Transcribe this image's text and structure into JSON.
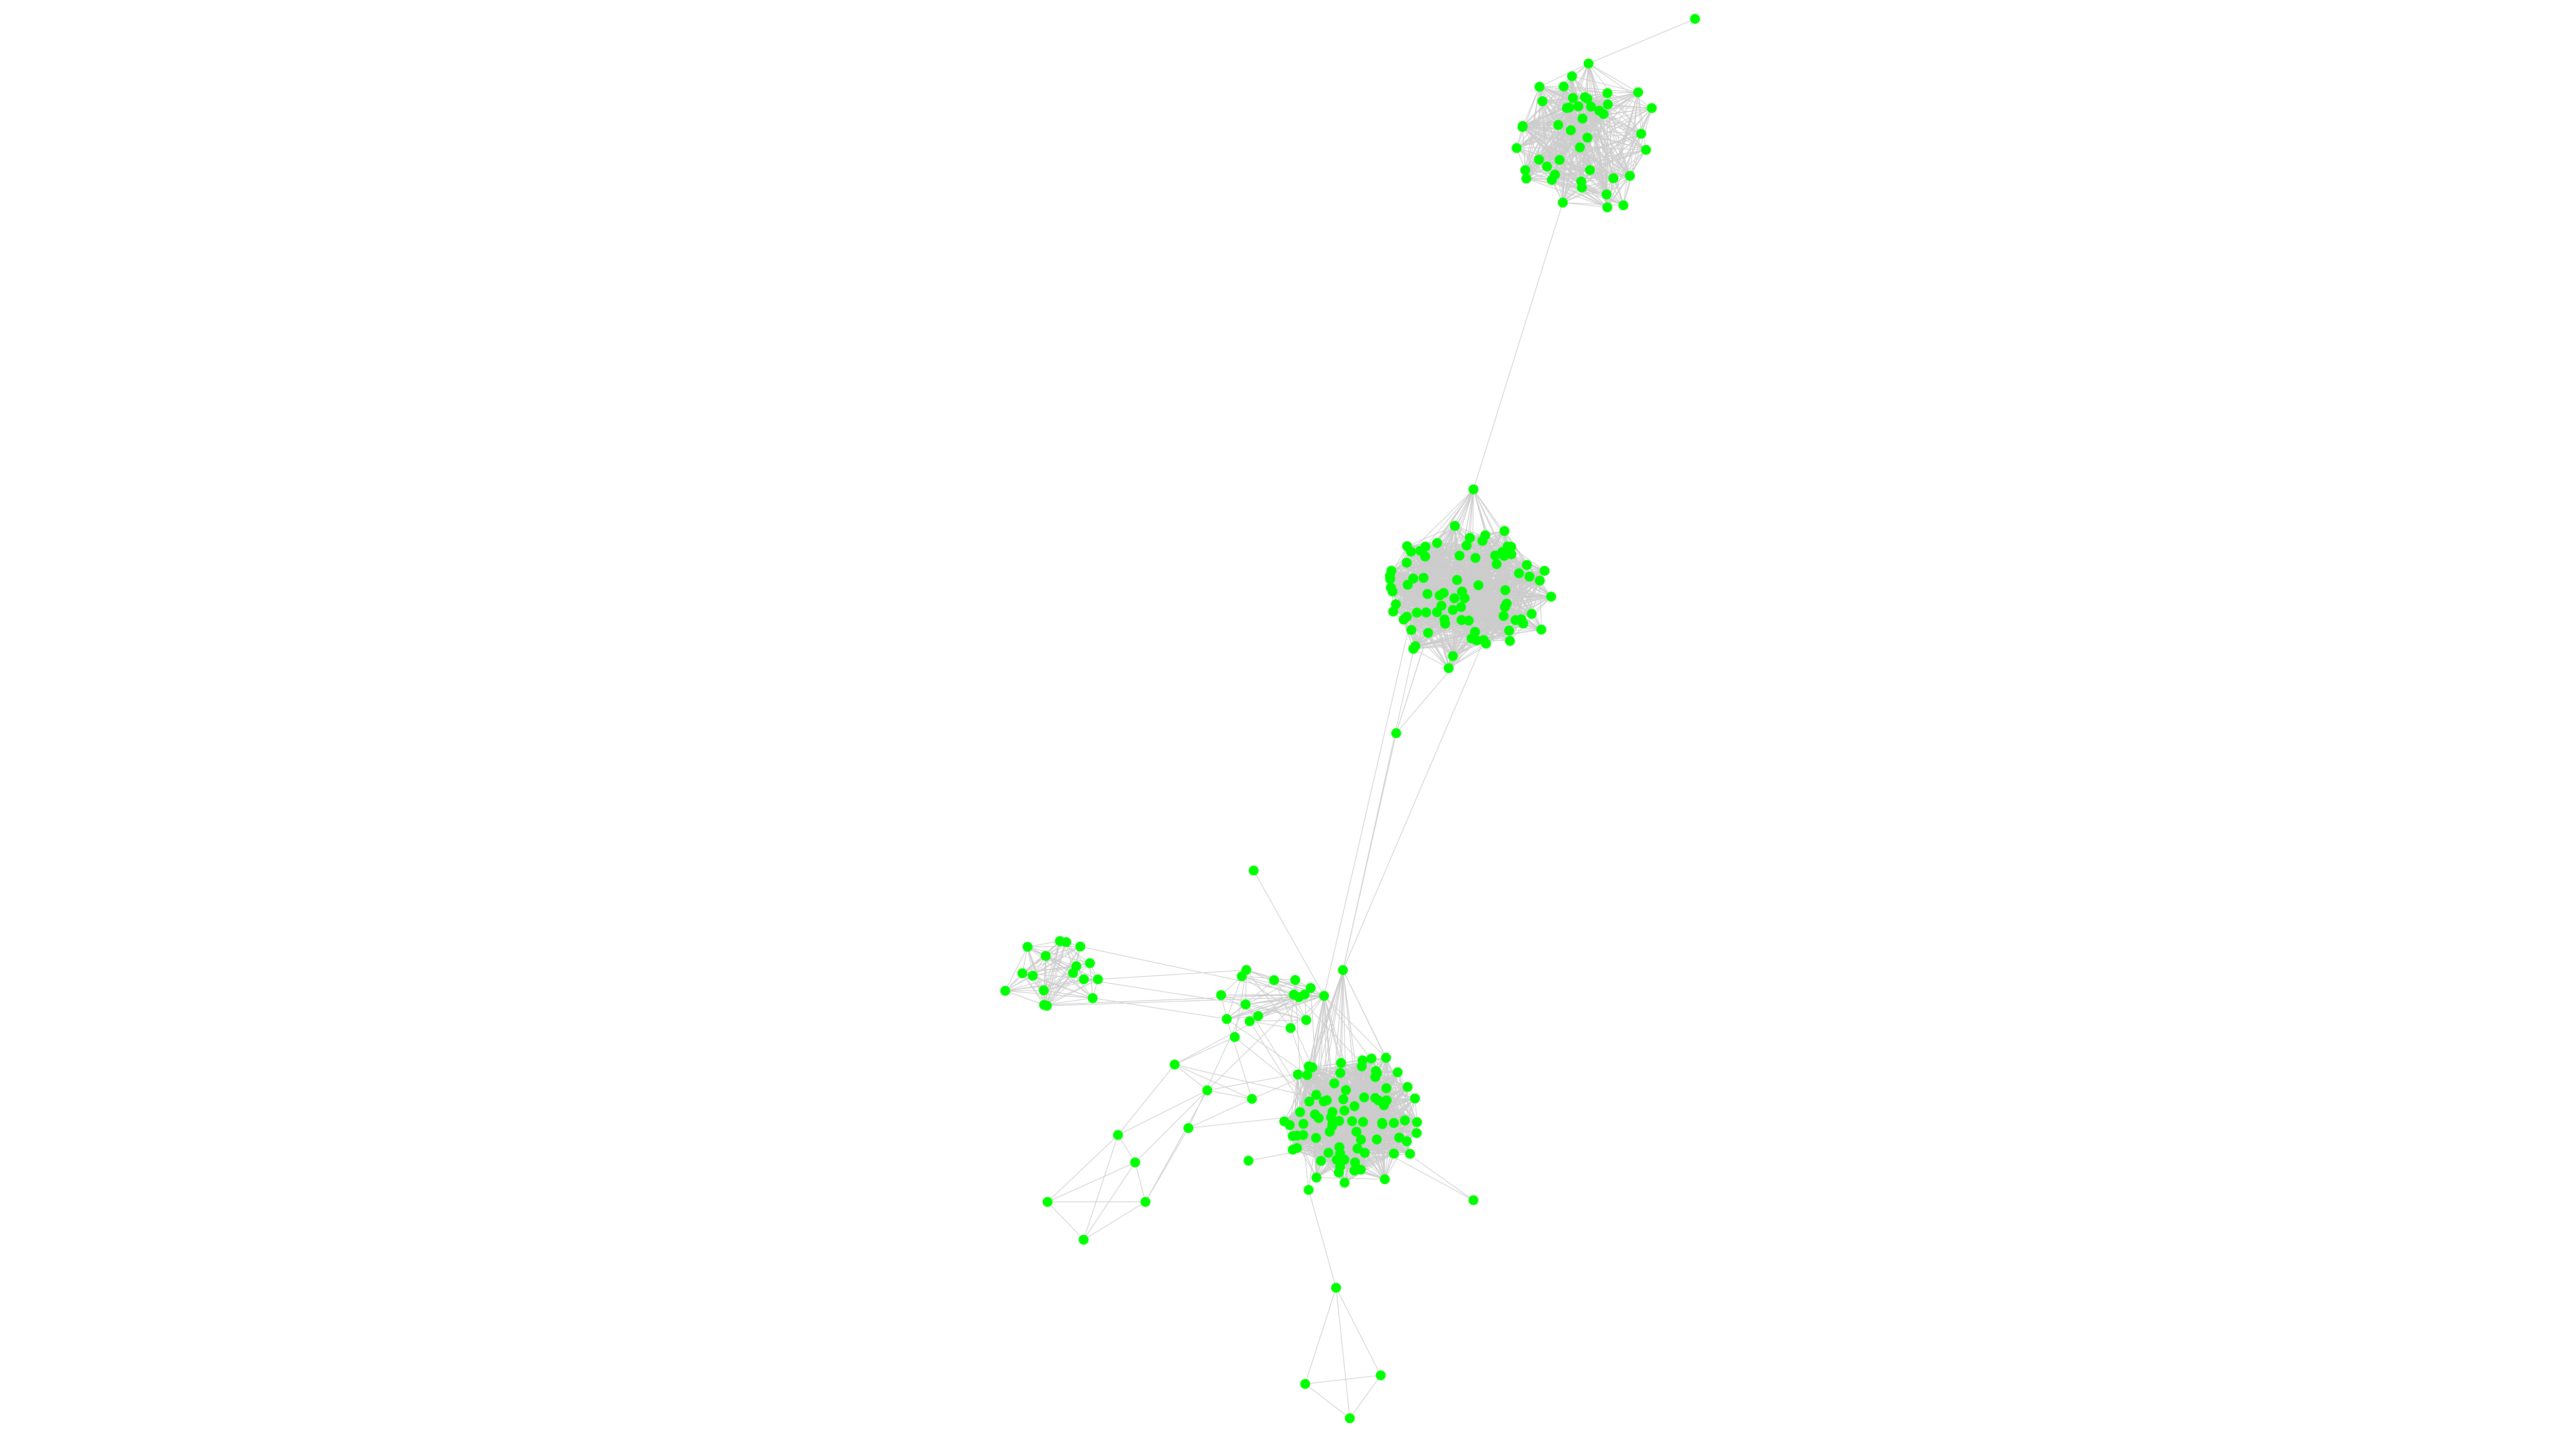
{
  "graph": {
    "type": "network",
    "node_color": "#00ff00",
    "edge_color": "#cccccc",
    "background": "#ffffff",
    "labels_shown": false
  }
}
